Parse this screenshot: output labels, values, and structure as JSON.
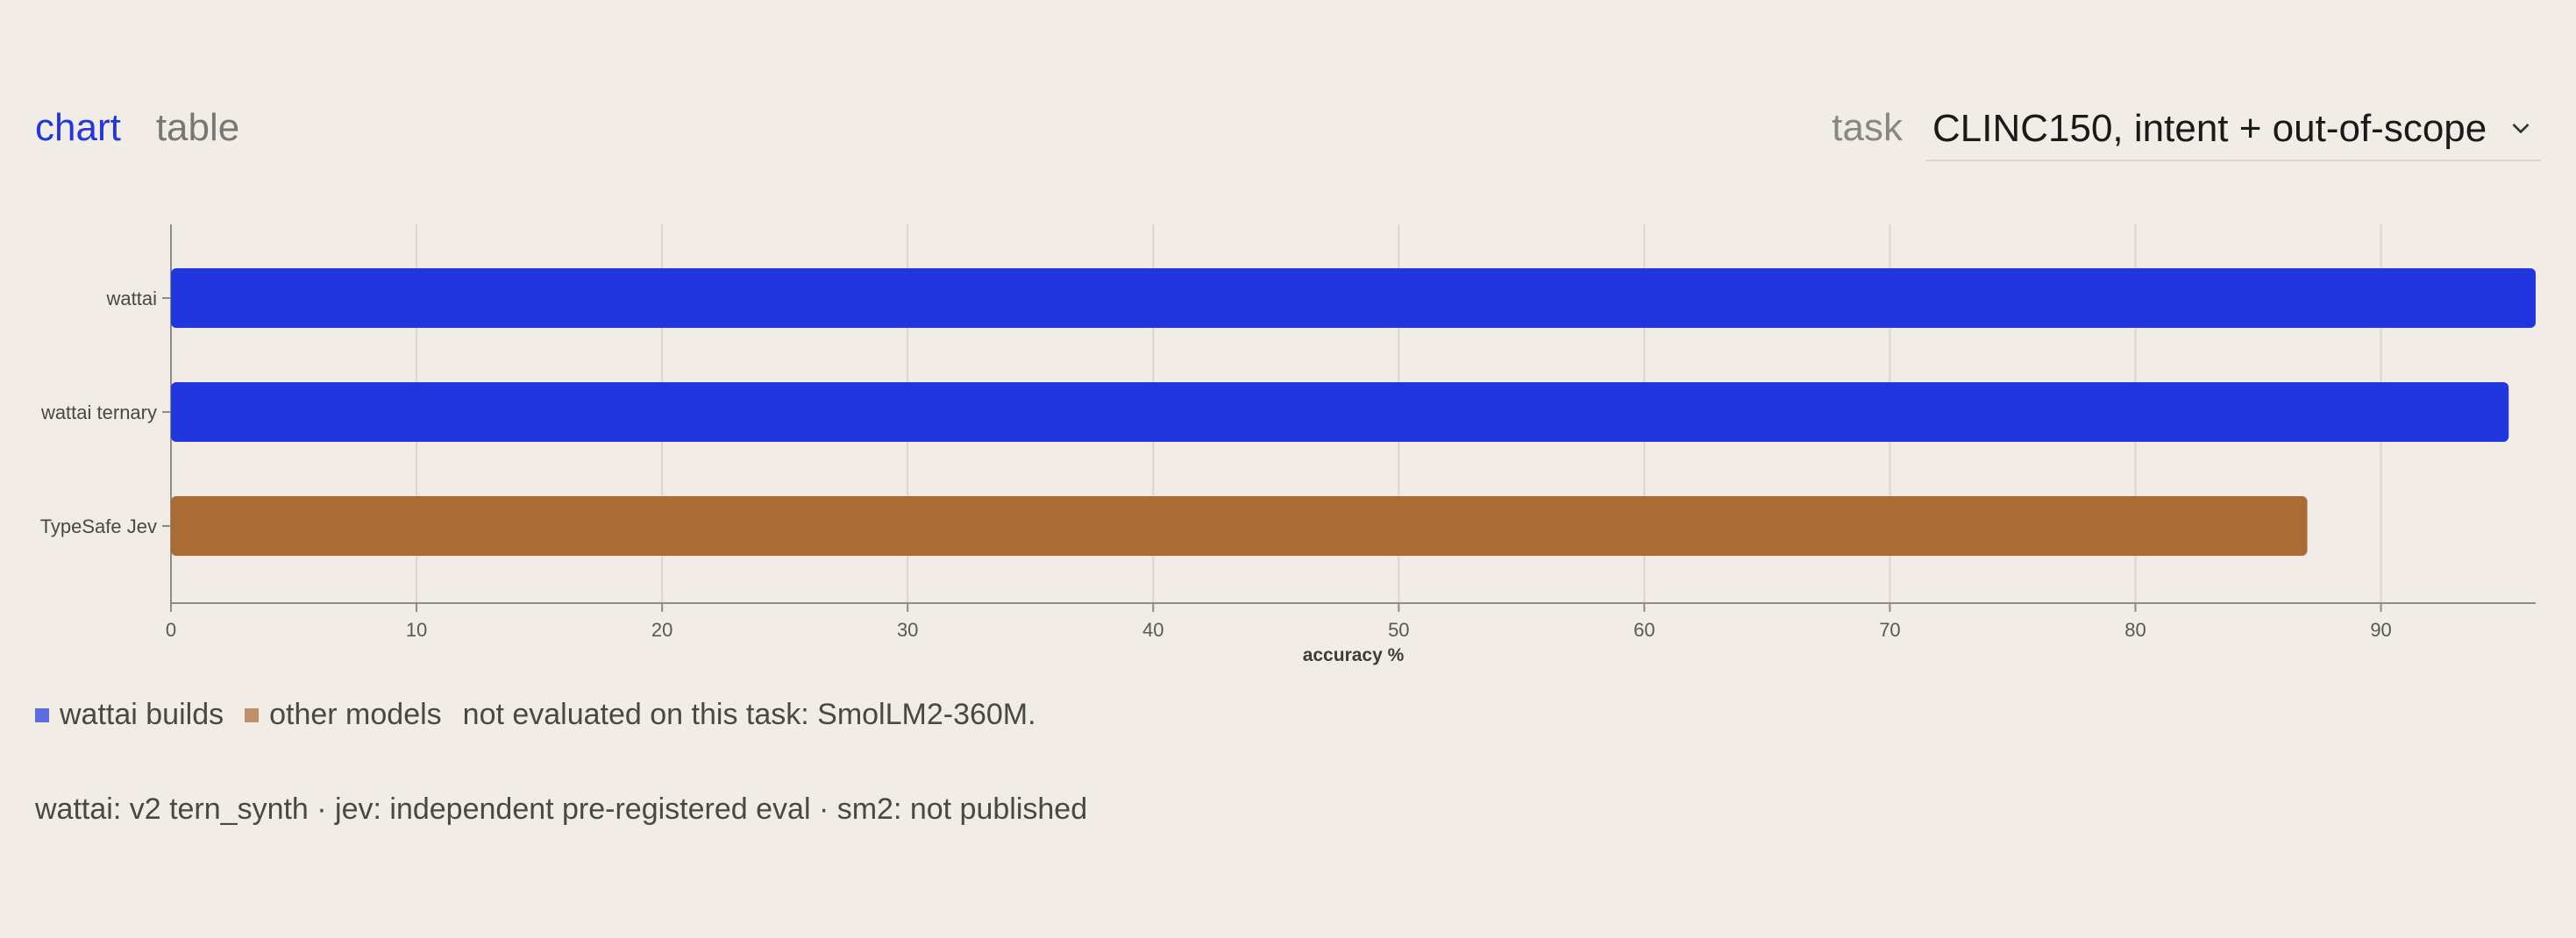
{
  "tabs": [
    {
      "label": "chart",
      "active": true
    },
    {
      "label": "table",
      "active": false
    }
  ],
  "task": {
    "label": "task",
    "value": "CLINC150, intent + out-of-scope",
    "icon": "chevron-down-icon"
  },
  "colors": {
    "accent": "#2236e0",
    "wattai": "#2236e0",
    "other": "#a86c34",
    "legend_wattai": "#5c6ce0",
    "legend_other": "#c0906a"
  },
  "chart_data": {
    "type": "bar",
    "orientation": "horizontal",
    "categories": [
      "wattai",
      "wattai ternary",
      "TypeSafe Jev"
    ],
    "values": [
      96.3,
      95.2,
      87.0
    ],
    "groups": [
      "wattai builds",
      "wattai builds",
      "other models"
    ],
    "xlabel": "accuracy %",
    "ylabel": "",
    "xlim": [
      0,
      96.3
    ],
    "xticks": [
      0,
      10,
      20,
      30,
      40,
      50,
      60,
      70,
      80,
      90
    ],
    "grid": true
  },
  "legend": {
    "items": [
      {
        "label": "wattai builds",
        "color": "#5c6ce0"
      },
      {
        "label": "other models",
        "color": "#c0906a"
      }
    ],
    "note": "not evaluated on this task: SmolLM2-360M."
  },
  "footnote": "wattai: v2 tern_synth · jev: independent pre-registered eval · sm2: not published"
}
